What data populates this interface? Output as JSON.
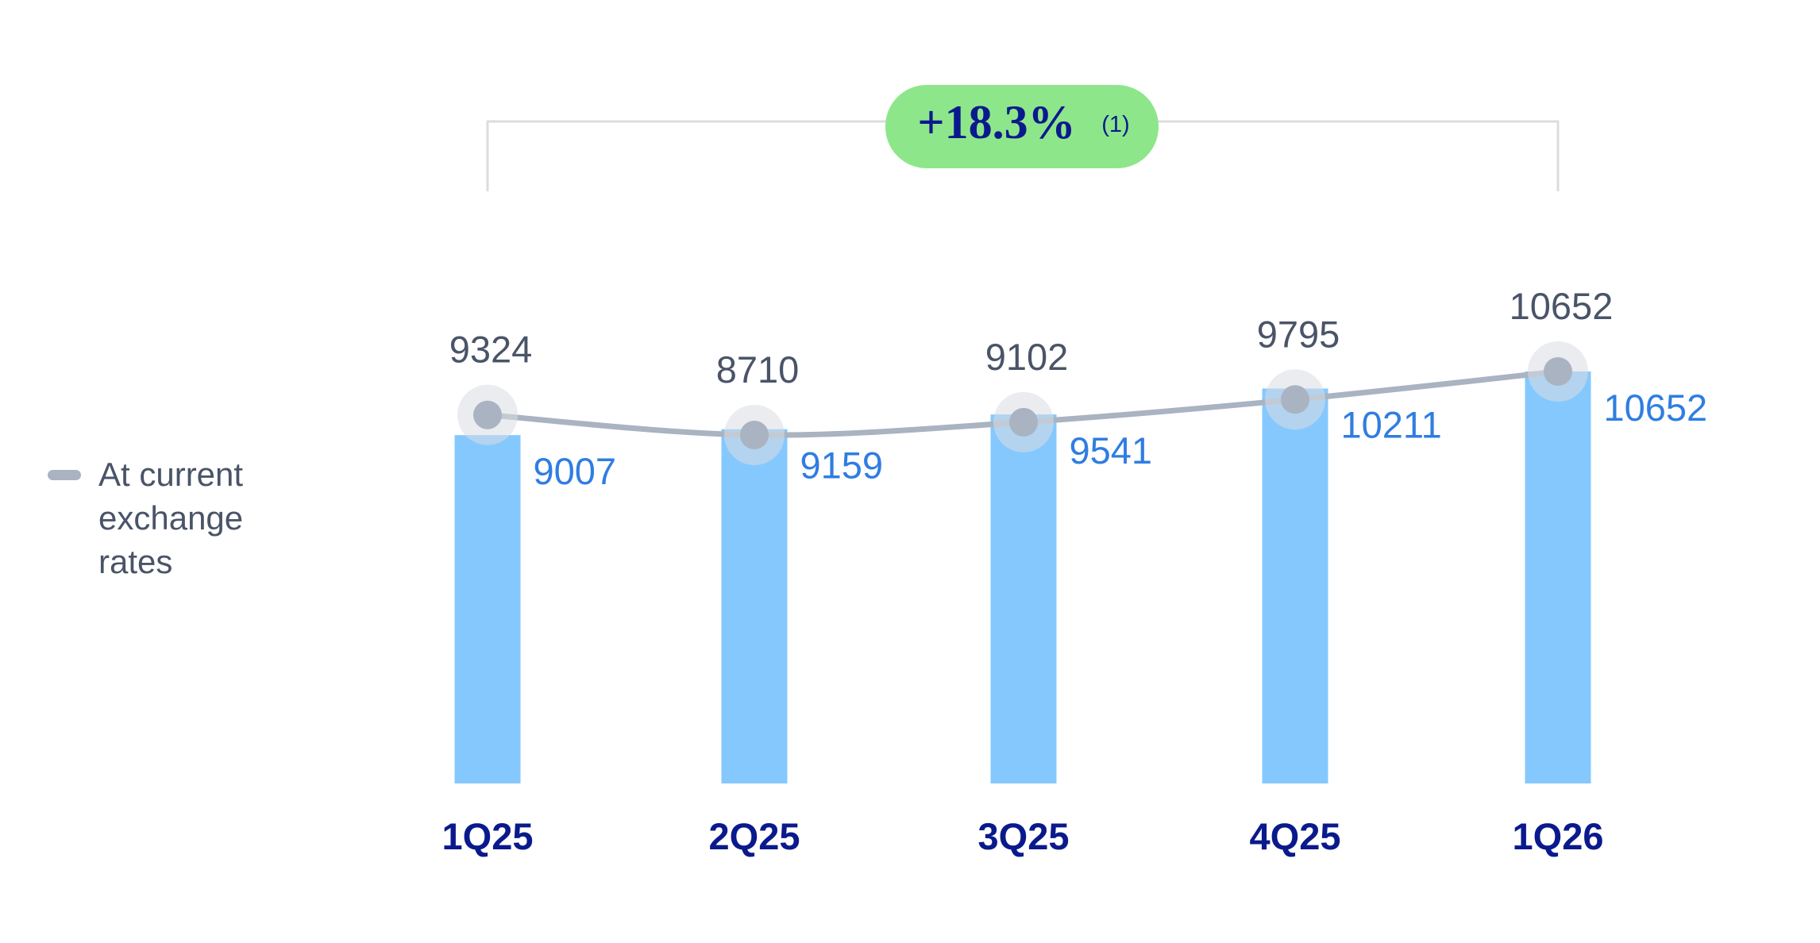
{
  "chart_data": {
    "type": "bar_line",
    "annotation": "+18.3%",
    "annotation_note": "(1)",
    "categories": [
      "1Q25",
      "2Q25",
      "3Q25",
      "4Q25",
      "1Q26"
    ],
    "series": [
      {
        "type": "bar",
        "color": "#85c8fd",
        "label_color": "#2f7de1",
        "values": [
          9007,
          9159,
          9541,
          10211,
          10652
        ]
      },
      {
        "type": "line",
        "name": "At current exchange rates",
        "color": "#a9b3c1",
        "label_color": "#4a5468",
        "values": [
          9324,
          8710,
          9102,
          9795,
          10652
        ]
      }
    ],
    "legend": "left"
  }
}
